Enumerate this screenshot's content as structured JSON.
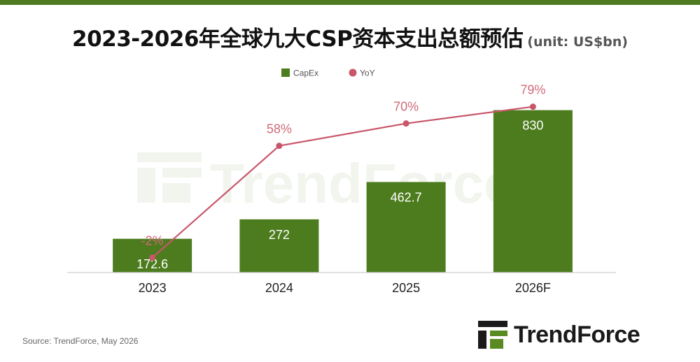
{
  "header": {
    "title": "2023-2026年全球九大CSP资本支出总额预估",
    "subtitle": "(unit: US$bn)"
  },
  "footer": {
    "source": "Source: TrendForce, May 2026"
  },
  "logo": {
    "text": "TrendForce"
  },
  "colors": {
    "top_bar": "#4f7a22",
    "bar": "#4d7c1e",
    "line": "#c8566a",
    "yoy_label": "#d06a78",
    "bar_label": "#ffffff"
  },
  "chart_data": {
    "type": "bar",
    "categories": [
      "2023",
      "2024",
      "2025",
      "2026F"
    ],
    "series": [
      {
        "name": "CapEx",
        "type": "bar",
        "values": [
          172.6,
          272,
          462.7,
          830
        ],
        "labels": [
          "172.6",
          "272",
          "462.7",
          "830"
        ]
      },
      {
        "name": "YoY",
        "type": "line",
        "values": [
          -2,
          58,
          70,
          79
        ],
        "labels": [
          "-2%",
          "58%",
          "70%",
          "79%"
        ]
      }
    ],
    "title": "2023-2026年全球九大CSP资本支出总额预估",
    "xlabel": "",
    "ylabel": "",
    "ylim": [
      0,
      1000
    ],
    "y2lim": [
      -10,
      95
    ],
    "legend": "top-center",
    "grid": false
  }
}
